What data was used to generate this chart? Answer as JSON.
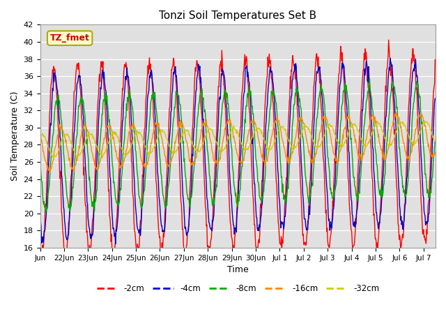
{
  "title": "Tonzi Soil Temperatures Set B",
  "xlabel": "Time",
  "ylabel": "Soil Temperature (C)",
  "ylim": [
    16,
    42
  ],
  "yticks": [
    16,
    18,
    20,
    22,
    24,
    26,
    28,
    30,
    32,
    34,
    36,
    38,
    40,
    42
  ],
  "annotation_text": "TZ_fmet",
  "annotation_color": "#cc0000",
  "annotation_box_color": "#ffffcc",
  "annotation_box_edge": "#aaaa00",
  "colors": {
    "-2cm": "#ff0000",
    "-4cm": "#0000cc",
    "-8cm": "#00aa00",
    "-16cm": "#ff8800",
    "-32cm": "#cccc00"
  },
  "legend_labels": [
    "-2cm",
    "-4cm",
    "-8cm",
    "-16cm",
    "-32cm"
  ],
  "bg_color": "#e0e0e0",
  "fig_bg_color": "#ffffff",
  "base_temp": 27.0,
  "amp_2": 11.0,
  "amp_4": 9.5,
  "amp_8": 6.5,
  "amp_16": 2.5,
  "amp_32": 1.3,
  "lag_2": 1.5,
  "lag_4": 3.0,
  "lag_8": 5.5,
  "lag_16": 9.0,
  "lag_32": 14.0,
  "trend_per_day": 0.1,
  "noise_2": 0.5,
  "noise_4": 0.4,
  "noise_8": 0.35,
  "noise_16": 0.2,
  "noise_32": 0.1
}
